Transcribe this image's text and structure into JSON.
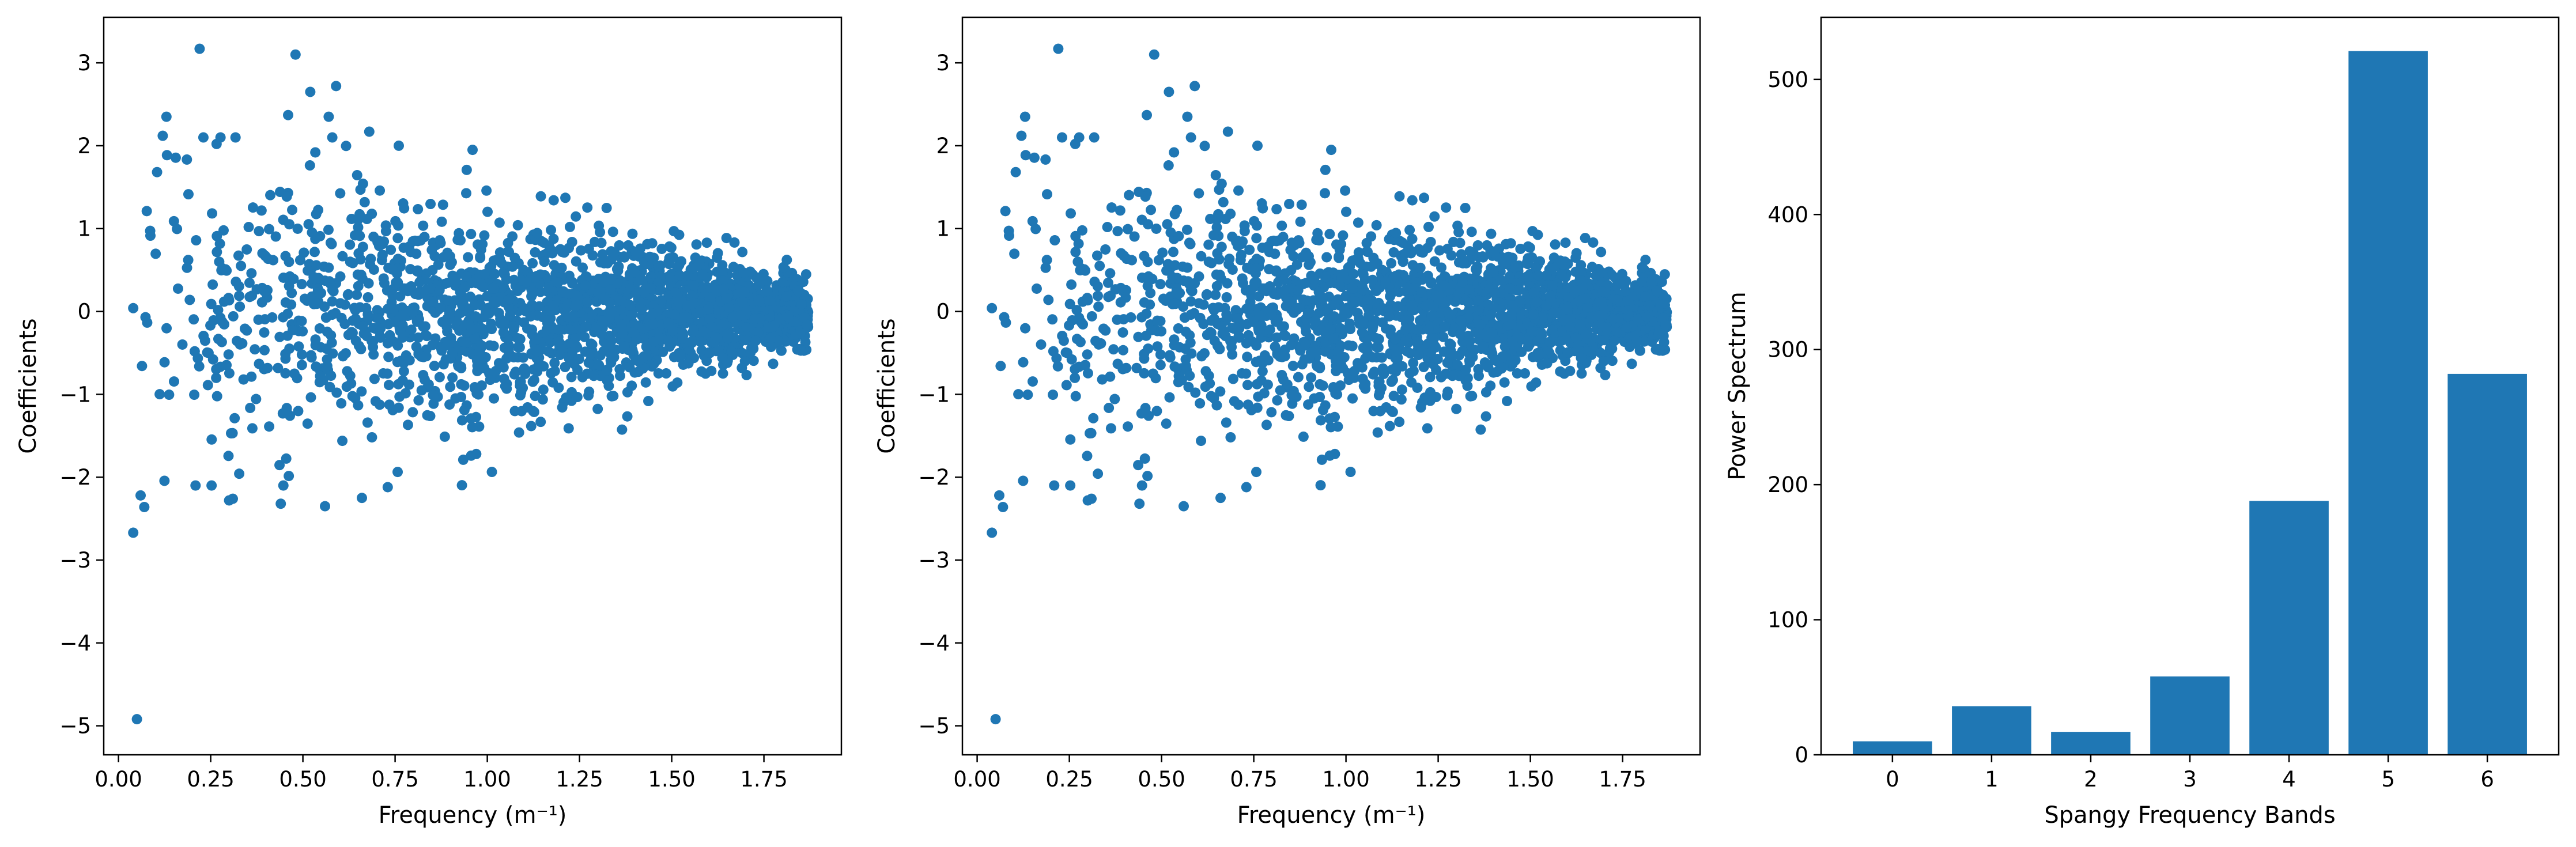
{
  "figure": {
    "background": "#ffffff",
    "point_color": "#1f77b4",
    "bar_color": "#1f77b4"
  },
  "chart_data": [
    {
      "type": "scatter",
      "xlabel": "Frequency (m⁻¹)",
      "ylabel": "Coefficients",
      "xlim": [
        -0.04,
        1.96
      ],
      "ylim": [
        -5.35,
        3.55
      ],
      "xticks": [
        0.0,
        0.25,
        0.5,
        0.75,
        1.0,
        1.25,
        1.5,
        1.75
      ],
      "xtick_labels": [
        "0.00",
        "0.25",
        "0.50",
        "0.75",
        "1.00",
        "1.25",
        "1.50",
        "1.75"
      ],
      "yticks": [
        -5,
        -4,
        -3,
        -2,
        -1,
        0,
        1,
        2,
        3
      ],
      "ytick_labels": [
        "−5",
        "−4",
        "−3",
        "−2",
        "−1",
        "0",
        "1",
        "2",
        "3"
      ],
      "grid": false,
      "outliers": [
        {
          "x": 0.05,
          "y": -4.92
        },
        {
          "x": 0.04,
          "y": -2.67
        },
        {
          "x": 0.06,
          "y": -2.22
        },
        {
          "x": 0.07,
          "y": -2.36
        },
        {
          "x": 0.22,
          "y": 3.17
        },
        {
          "x": 0.48,
          "y": 3.1
        },
        {
          "x": 0.59,
          "y": 2.72
        },
        {
          "x": 0.52,
          "y": 2.65
        },
        {
          "x": 0.46,
          "y": 2.37
        },
        {
          "x": 0.13,
          "y": 2.35
        },
        {
          "x": 0.12,
          "y": 2.12
        },
        {
          "x": 0.57,
          "y": 2.35
        },
        {
          "x": 0.68,
          "y": 2.17
        },
        {
          "x": 0.76,
          "y": 2.0
        },
        {
          "x": 0.96,
          "y": 1.95
        },
        {
          "x": 0.3,
          "y": -2.28
        },
        {
          "x": 0.31,
          "y": -2.26
        },
        {
          "x": 0.44,
          "y": -2.32
        },
        {
          "x": 0.56,
          "y": -2.35
        },
        {
          "x": 0.66,
          "y": -2.25
        },
        {
          "x": 0.73,
          "y": -2.12
        },
        {
          "x": 0.97,
          "y": -1.72
        },
        {
          "x": 0.04,
          "y": 0.04
        }
      ],
      "cloud": {
        "count": 2200,
        "x_min": 0.05,
        "x_max": 1.87,
        "spread_at_min": 1.05,
        "spread_at_max": 0.2
      }
    },
    {
      "type": "scatter",
      "xlabel": "Frequency (m⁻¹)",
      "ylabel": "Coefficients",
      "xlim": [
        -0.04,
        1.96
      ],
      "ylim": [
        -5.35,
        3.55
      ],
      "xticks": [
        0.0,
        0.25,
        0.5,
        0.75,
        1.0,
        1.25,
        1.5,
        1.75
      ],
      "xtick_labels": [
        "0.00",
        "0.25",
        "0.50",
        "0.75",
        "1.00",
        "1.25",
        "1.50",
        "1.75"
      ],
      "yticks": [
        -5,
        -4,
        -3,
        -2,
        -1,
        0,
        1,
        2,
        3
      ],
      "ytick_labels": [
        "−5",
        "−4",
        "−3",
        "−2",
        "−1",
        "0",
        "1",
        "2",
        "3"
      ],
      "grid": false,
      "outliers": [
        {
          "x": 0.05,
          "y": -4.92
        },
        {
          "x": 0.04,
          "y": -2.67
        },
        {
          "x": 0.06,
          "y": -2.22
        },
        {
          "x": 0.07,
          "y": -2.36
        },
        {
          "x": 0.22,
          "y": 3.17
        },
        {
          "x": 0.48,
          "y": 3.1
        },
        {
          "x": 0.59,
          "y": 2.72
        },
        {
          "x": 0.52,
          "y": 2.65
        },
        {
          "x": 0.46,
          "y": 2.37
        },
        {
          "x": 0.13,
          "y": 2.35
        },
        {
          "x": 0.12,
          "y": 2.12
        },
        {
          "x": 0.57,
          "y": 2.35
        },
        {
          "x": 0.68,
          "y": 2.17
        },
        {
          "x": 0.76,
          "y": 2.0
        },
        {
          "x": 0.96,
          "y": 1.95
        },
        {
          "x": 0.3,
          "y": -2.28
        },
        {
          "x": 0.31,
          "y": -2.26
        },
        {
          "x": 0.44,
          "y": -2.32
        },
        {
          "x": 0.56,
          "y": -2.35
        },
        {
          "x": 0.66,
          "y": -2.25
        },
        {
          "x": 0.73,
          "y": -2.12
        },
        {
          "x": 0.97,
          "y": -1.72
        },
        {
          "x": 0.04,
          "y": 0.04
        }
      ],
      "cloud": {
        "count": 2200,
        "x_min": 0.05,
        "x_max": 1.87,
        "spread_at_min": 1.05,
        "spread_at_max": 0.2
      }
    },
    {
      "type": "bar",
      "xlabel": "Spangy Frequency Bands",
      "ylabel": "Power Spectrum",
      "categories": [
        "0",
        "1",
        "2",
        "3",
        "4",
        "5",
        "6"
      ],
      "values": [
        10,
        36,
        17,
        58,
        188,
        521,
        282
      ],
      "xlim": [
        -0.72,
        6.72
      ],
      "ylim": [
        0,
        546
      ],
      "yticks": [
        0,
        100,
        200,
        300,
        400,
        500
      ],
      "ytick_labels": [
        "0",
        "100",
        "200",
        "300",
        "400",
        "500"
      ],
      "grid": false
    }
  ]
}
